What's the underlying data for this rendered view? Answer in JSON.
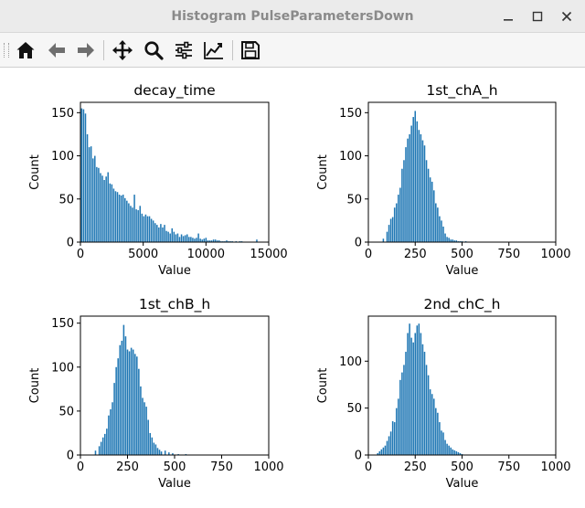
{
  "window": {
    "title": "Histogram PulseParametersDown",
    "minimize_icon": "minimize-icon",
    "maximize_icon": "maximize-icon",
    "close_icon": "close-icon"
  },
  "toolbar": {
    "buttons": [
      {
        "name": "home-button",
        "icon": "home-icon"
      },
      {
        "name": "back-button",
        "icon": "arrow-left-icon"
      },
      {
        "name": "forward-button",
        "icon": "arrow-right-icon"
      },
      {
        "name": "pan-button",
        "icon": "move-icon"
      },
      {
        "name": "zoom-button",
        "icon": "magnifier-icon"
      },
      {
        "name": "subplots-button",
        "icon": "sliders-icon"
      },
      {
        "name": "edit-axes-button",
        "icon": "line-chart-icon"
      },
      {
        "name": "save-button",
        "icon": "floppy-disk-icon"
      }
    ]
  },
  "colors": {
    "bar": "#1f77b4",
    "axis": "#000000",
    "background": "#ffffff"
  },
  "chart_data": [
    {
      "type": "bar",
      "title": "decay_time",
      "xlabel": "Value",
      "ylabel": "Count",
      "xlim": [
        0,
        15000
      ],
      "ylim": [
        0,
        162
      ],
      "xticks": [
        "0",
        "5000",
        "10000",
        "15000"
      ],
      "xtick_values": [
        0,
        5000,
        10000,
        15000
      ],
      "yticks": [
        "0",
        "50",
        "100",
        "150"
      ],
      "ytick_values": [
        0,
        50,
        100,
        150
      ],
      "x": [
        100,
        250,
        400,
        550,
        700,
        850,
        1000,
        1150,
        1300,
        1450,
        1600,
        1750,
        1900,
        2050,
        2200,
        2350,
        2500,
        2650,
        2800,
        2950,
        3100,
        3250,
        3400,
        3550,
        3700,
        3850,
        4000,
        4150,
        4300,
        4450,
        4600,
        4750,
        4900,
        5050,
        5200,
        5350,
        5500,
        5650,
        5800,
        5950,
        6100,
        6250,
        6400,
        6550,
        6700,
        6850,
        7000,
        7150,
        7300,
        7450,
        7600,
        7750,
        7900,
        8050,
        8200,
        8350,
        8500,
        8650,
        8800,
        8950,
        9100,
        9250,
        9400,
        9550,
        9700,
        9850,
        10000,
        10150,
        10300,
        10450,
        10600,
        10750,
        10900,
        11050,
        11200,
        11350,
        11500,
        11650,
        11800,
        11950,
        12100,
        12250,
        12400,
        12550,
        12700,
        12850,
        13000,
        13150,
        13300,
        13450,
        13600,
        13750,
        13900,
        14050,
        14200,
        14350
      ],
      "values": [
        155,
        154,
        149,
        125,
        110,
        111,
        97,
        100,
        87,
        86,
        80,
        77,
        72,
        76,
        81,
        68,
        67,
        62,
        59,
        58,
        55,
        54,
        55,
        51,
        48,
        45,
        42,
        40,
        55,
        38,
        37,
        42,
        33,
        30,
        32,
        30,
        30,
        27,
        25,
        22,
        20,
        17,
        21,
        17,
        20,
        13,
        12,
        10,
        16,
        12,
        9,
        10,
        6,
        9,
        7,
        8,
        9,
        6,
        6,
        5,
        4,
        5,
        10,
        4,
        3,
        4,
        5,
        2,
        2,
        2,
        3,
        3,
        2,
        2,
        1,
        1,
        1,
        2,
        1,
        1,
        1,
        0,
        1,
        0,
        1,
        1,
        0,
        0,
        0,
        0,
        0,
        0,
        0,
        3,
        0,
        0
      ],
      "bar_width": 110
    },
    {
      "type": "bar",
      "title": "1st_chA_h",
      "xlabel": "Value",
      "ylabel": "Count",
      "xlim": [
        0,
        1000
      ],
      "ylim": [
        0,
        162
      ],
      "xticks": [
        "0",
        "250",
        "500",
        "750",
        "1000"
      ],
      "xtick_values": [
        0,
        250,
        500,
        750,
        1000
      ],
      "yticks": [
        "0",
        "50",
        "100",
        "150"
      ],
      "ytick_values": [
        0,
        50,
        100,
        150
      ],
      "x": [
        80,
        100,
        110,
        120,
        130,
        140,
        150,
        160,
        170,
        180,
        190,
        200,
        210,
        220,
        230,
        240,
        250,
        260,
        270,
        280,
        290,
        300,
        310,
        320,
        330,
        340,
        350,
        360,
        370,
        380,
        390,
        400,
        410,
        420,
        430,
        440,
        450,
        460,
        470,
        480,
        490,
        500,
        520
      ],
      "values": [
        4,
        12,
        20,
        27,
        29,
        40,
        45,
        55,
        63,
        85,
        95,
        110,
        120,
        125,
        135,
        145,
        152,
        140,
        130,
        125,
        118,
        112,
        95,
        85,
        75,
        70,
        60,
        45,
        40,
        30,
        25,
        18,
        10,
        6,
        5,
        3,
        3,
        2,
        2,
        1,
        1,
        1,
        1
      ],
      "bar_width": 7.5
    },
    {
      "type": "bar",
      "title": "1st_chB_h",
      "xlabel": "Value",
      "ylabel": "Count",
      "xlim": [
        0,
        1000
      ],
      "ylim": [
        0,
        158
      ],
      "xticks": [
        "0",
        "250",
        "500",
        "750",
        "1000"
      ],
      "xtick_values": [
        0,
        250,
        500,
        750,
        1000
      ],
      "yticks": [
        "0",
        "50",
        "100",
        "150"
      ],
      "ytick_values": [
        0,
        50,
        100,
        150
      ],
      "x": [
        80,
        100,
        110,
        120,
        130,
        140,
        150,
        160,
        170,
        180,
        190,
        200,
        210,
        220,
        230,
        240,
        250,
        260,
        270,
        280,
        290,
        300,
        310,
        320,
        330,
        340,
        350,
        360,
        370,
        380,
        390,
        400,
        410,
        420,
        430,
        450,
        470,
        490,
        520,
        560
      ],
      "values": [
        5,
        10,
        15,
        20,
        24,
        30,
        45,
        52,
        60,
        82,
        100,
        110,
        125,
        130,
        148,
        135,
        120,
        118,
        122,
        120,
        115,
        112,
        98,
        78,
        65,
        60,
        55,
        40,
        25,
        20,
        14,
        12,
        8,
        6,
        4,
        5,
        3,
        2,
        1,
        1
      ],
      "bar_width": 7.5
    },
    {
      "type": "bar",
      "title": "2nd_chC_h",
      "xlabel": "Value",
      "ylabel": "Count",
      "xlim": [
        0,
        1000
      ],
      "ylim": [
        0,
        148
      ],
      "xticks": [
        "0",
        "250",
        "500",
        "750",
        "1000"
      ],
      "xtick_values": [
        0,
        250,
        500,
        750,
        1000
      ],
      "yticks": [
        "0",
        "50",
        "100"
      ],
      "ytick_values": [
        0,
        50,
        100
      ],
      "x": [
        50,
        60,
        70,
        80,
        90,
        100,
        110,
        120,
        130,
        140,
        150,
        160,
        170,
        180,
        190,
        200,
        210,
        220,
        230,
        240,
        250,
        260,
        270,
        280,
        290,
        300,
        310,
        320,
        330,
        340,
        350,
        360,
        370,
        380,
        390,
        400,
        410,
        420,
        430,
        440,
        450,
        460,
        470,
        480,
        490,
        500
      ],
      "values": [
        2,
        4,
        6,
        8,
        10,
        15,
        20,
        25,
        36,
        35,
        50,
        60,
        80,
        88,
        96,
        110,
        130,
        140,
        125,
        120,
        130,
        138,
        140,
        130,
        118,
        110,
        96,
        85,
        70,
        65,
        60,
        50,
        45,
        35,
        26,
        24,
        16,
        12,
        10,
        8,
        6,
        5,
        4,
        3,
        2,
        1
      ],
      "bar_width": 7.5
    }
  ]
}
